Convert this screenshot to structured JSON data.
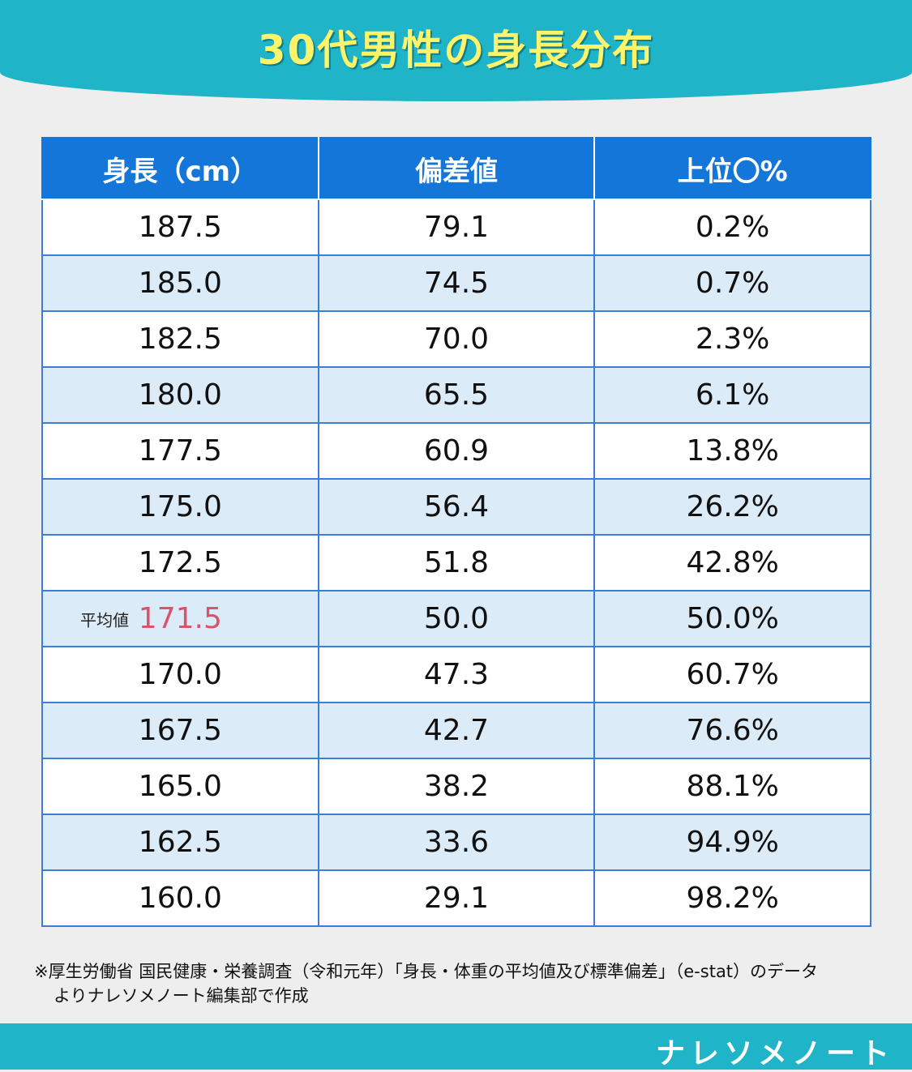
{
  "title": "30代男性の身長分布",
  "chart_data": {
    "type": "table",
    "title": "30代男性の身長分布",
    "columns": [
      "身長（cm）",
      "偏差値",
      "上位〇%"
    ],
    "rows": [
      [
        "187.5",
        "79.1",
        "0.2%"
      ],
      [
        "185.0",
        "74.5",
        "0.7%"
      ],
      [
        "182.5",
        "70.0",
        "2.3%"
      ],
      [
        "180.0",
        "65.5",
        "6.1%"
      ],
      [
        "177.5",
        "60.9",
        "13.8%"
      ],
      [
        "175.0",
        "56.4",
        "26.2%"
      ],
      [
        "172.5",
        "51.8",
        "42.8%"
      ],
      [
        "171.5",
        "50.0",
        "50.0%"
      ],
      [
        "170.0",
        "47.3",
        "60.7%"
      ],
      [
        "167.5",
        "42.7",
        "76.6%"
      ],
      [
        "165.0",
        "38.2",
        "88.1%"
      ],
      [
        "162.5",
        "33.6",
        "94.9%"
      ],
      [
        "160.0",
        "29.1",
        "98.2%"
      ]
    ],
    "average_label": "平均値",
    "average_row_index": 7,
    "average_color": "#d9546b",
    "header_color": "#1476d8",
    "alt_row_color": "#dcebf8"
  },
  "note": {
    "line1": "※厚生労働省 国民健康・栄養調査（令和元年）「身長・体重の平均値及び標準偏差」（e-stat）のデータ",
    "line2": "よりナレソメノート編集部で作成"
  },
  "brand": "ナレソメノート",
  "colors": {
    "banner": "#1fb4c8",
    "title_text": "#fff36a",
    "background": "#eeeeee"
  }
}
